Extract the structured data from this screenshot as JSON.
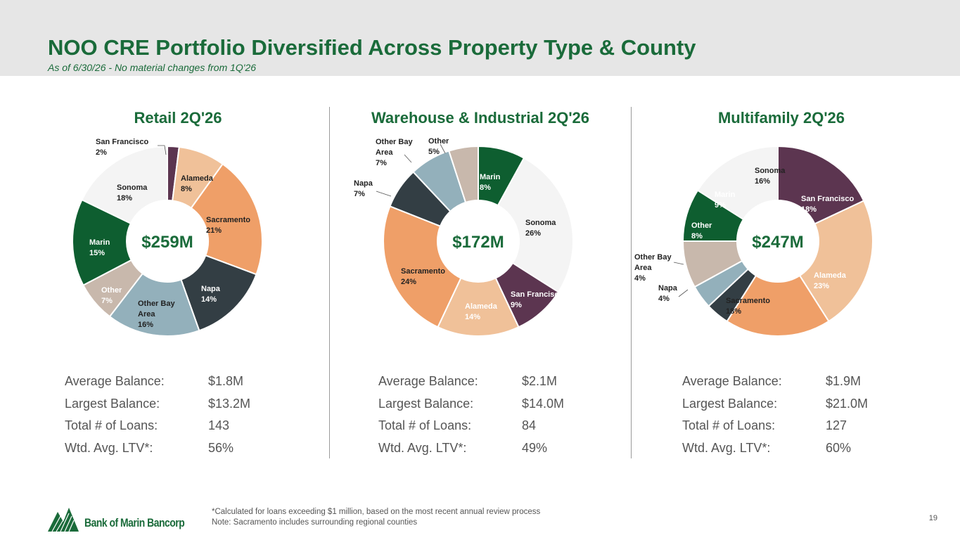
{
  "header": {
    "title": "NOO CRE Portfolio Diversified Across Property Type & County",
    "subtitle": "As of 6/30/26 - No material changes from 1Q'26"
  },
  "stat_labels": [
    "Average Balance:",
    "Largest Balance:",
    "Total # of Loans:",
    "Wtd. Avg. LTV*:"
  ],
  "colors": {
    "San Francisco": "#5c3550",
    "Alameda": "#f0c199",
    "Sacramento": "#ef9f68",
    "Napa": "#333e44",
    "Other Bay Area": "#93b0bb",
    "Other": "#c8b8ac",
    "Marin": "#0e5e30",
    "Sonoma": "#f4f4f4"
  },
  "chart_data": [
    {
      "type": "pie",
      "title": "Retail 2Q'26",
      "center_label": "$259M",
      "slices": [
        {
          "label": "San Francisco",
          "value": 2
        },
        {
          "label": "Alameda",
          "value": 8
        },
        {
          "label": "Sacramento",
          "value": 21
        },
        {
          "label": "Napa",
          "value": 14
        },
        {
          "label": "Other Bay Area",
          "value": 16
        },
        {
          "label": "Other",
          "value": 7
        },
        {
          "label": "Marin",
          "value": 15
        },
        {
          "label": "Sonoma",
          "value": 18
        }
      ],
      "stats": [
        "$1.8M",
        "$13.2M",
        "143",
        "56%"
      ]
    },
    {
      "type": "pie",
      "title": "Warehouse & Industrial 2Q'26",
      "center_label": "$172M",
      "slices": [
        {
          "label": "Marin",
          "value": 8
        },
        {
          "label": "Sonoma",
          "value": 26
        },
        {
          "label": "San Francisco",
          "value": 9
        },
        {
          "label": "Alameda",
          "value": 14
        },
        {
          "label": "Sacramento",
          "value": 24
        },
        {
          "label": "Napa",
          "value": 7
        },
        {
          "label": "Other Bay Area",
          "value": 7
        },
        {
          "label": "Other",
          "value": 5
        }
      ],
      "stats": [
        "$2.1M",
        "$14.0M",
        "84",
        "49%"
      ]
    },
    {
      "type": "pie",
      "title": "Multifamily 2Q'26",
      "center_label": "$247M",
      "slices": [
        {
          "label": "San Francisco",
          "value": 18
        },
        {
          "label": "Alameda",
          "value": 23
        },
        {
          "label": "Sacramento",
          "value": 18
        },
        {
          "label": "Napa",
          "value": 4
        },
        {
          "label": "Other Bay Area",
          "value": 4
        },
        {
          "label": "Other",
          "value": 8
        },
        {
          "label": "Marin",
          "value": 9
        },
        {
          "label": "Sonoma",
          "value": 16
        }
      ],
      "stats": [
        "$1.9M",
        "$21.0M",
        "127",
        "60%"
      ]
    }
  ],
  "footer": {
    "note1": "*Calculated for loans exceeding $1 million, based on the most recent annual review process",
    "note2": "Note: Sacramento includes surrounding regional counties",
    "page": "19",
    "logo": "Bank of Marin Bancorp"
  }
}
